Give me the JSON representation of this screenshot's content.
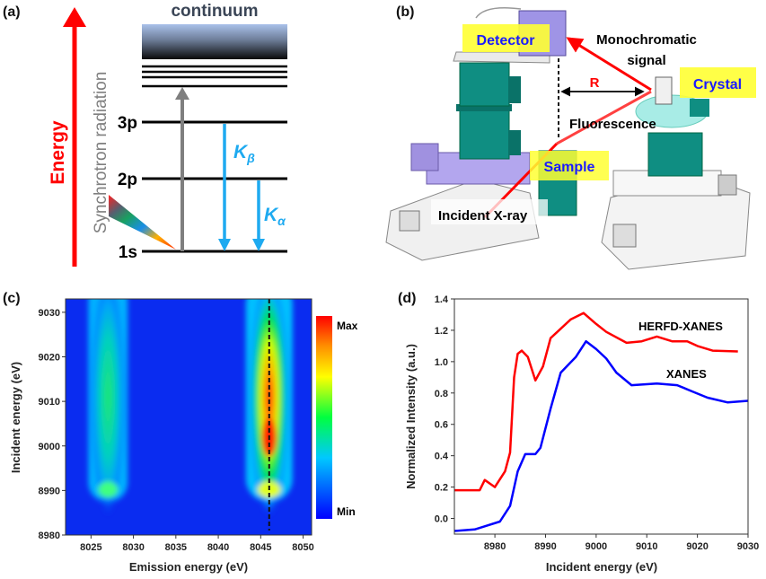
{
  "panel_a": {
    "label": "(a)",
    "energy": "Energy",
    "synchrotron": "Synchrotron radiation",
    "continuum": "continuum",
    "levels": [
      "3p",
      "2p",
      "1s"
    ],
    "k_beta": "K",
    "k_beta_sub": "β",
    "k_alpha": "K",
    "k_alpha_sub": "α",
    "colors": {
      "energy_arrow": "#ff0000",
      "emission_arrows": "#1eaaf0",
      "excitation_arrow": "#7f7f7f"
    }
  },
  "panel_b": {
    "label": "(b)",
    "detector": "Detector",
    "monochromatic_1": "Monochromatic",
    "monochromatic_2": "signal",
    "crystal": "Crystal",
    "r": "R",
    "fluorescence": "Fluorescence",
    "sample": "Sample",
    "incident": "Incident X-ray",
    "colors": {
      "label_box": "#ffff33",
      "label_text": "#1a1aff",
      "beam": "#ff0000",
      "stage": "#008b80"
    }
  },
  "chart_data": [
    {
      "panel": "(c)",
      "type": "heatmap",
      "xlabel": "Emission energy (eV)",
      "ylabel": "Incident energy (eV)",
      "xlim": [
        8022,
        8051
      ],
      "ylim": [
        8980,
        9033
      ],
      "xticks": [
        "8025",
        "8030",
        "8035",
        "8040",
        "8045",
        "8050"
      ],
      "yticks": [
        "8980",
        "8990",
        "9000",
        "9010",
        "9020",
        "9030"
      ],
      "colorbar": {
        "max_label": "Max",
        "min_label": "Min",
        "colors": [
          "#0000ff",
          "#00ffff",
          "#00ff00",
          "#ffff00",
          "#ff0000"
        ]
      },
      "peaks": [
        {
          "emission": 8027,
          "incident_onset": 8989,
          "relative_intensity": 0.45
        },
        {
          "emission": 8046,
          "incident_onset": 8989,
          "relative_intensity": 1.0,
          "max_at_incident": 9002
        }
      ],
      "dashed_line_emission": 8046
    },
    {
      "panel": "(d)",
      "type": "line",
      "xlabel": "Incident energy (eV)",
      "ylabel": "Normalized Intensity (a.u.)",
      "xlim": [
        8972,
        9030
      ],
      "ylim": [
        -0.1,
        1.4
      ],
      "xticks": [
        "8980",
        "8990",
        "9000",
        "9010",
        "9020",
        "9030"
      ],
      "yticks": [
        "0.0",
        "0.2",
        "0.4",
        "0.6",
        "0.8",
        "1.0",
        "1.2",
        "1.4"
      ],
      "series": [
        {
          "name": "HERFD-XANES",
          "color": "#ff0000",
          "x": [
            8972,
            8977,
            8978,
            8980,
            8982,
            8983,
            8983.8,
            8984.5,
            8985.3,
            8986.5,
            8988,
            8989.5,
            8991,
            8993,
            8995,
            8997.5,
            9000,
            9002,
            9006,
            9009,
            9012,
            9015,
            9018,
            9020,
            9023,
            9028
          ],
          "y": [
            0.18,
            0.18,
            0.245,
            0.2,
            0.3,
            0.42,
            0.9,
            1.05,
            1.07,
            1.03,
            0.88,
            0.97,
            1.15,
            1.21,
            1.27,
            1.31,
            1.24,
            1.19,
            1.12,
            1.13,
            1.16,
            1.13,
            1.13,
            1.1,
            1.07,
            1.065
          ]
        },
        {
          "name": "XANES",
          "color": "#0000ff",
          "x": [
            8972,
            8976,
            8978,
            8981,
            8983,
            8984.5,
            8986,
            8988,
            8989,
            8991,
            8993,
            8996,
            8998,
            9000,
            9002,
            9004,
            9007,
            9012,
            9016,
            9019,
            9022,
            9026,
            9030
          ],
          "y": [
            -0.08,
            -0.07,
            -0.05,
            -0.02,
            0.08,
            0.3,
            0.41,
            0.41,
            0.45,
            0.7,
            0.93,
            1.03,
            1.13,
            1.08,
            1.02,
            0.93,
            0.85,
            0.86,
            0.85,
            0.81,
            0.77,
            0.74,
            0.75
          ]
        }
      ]
    }
  ]
}
